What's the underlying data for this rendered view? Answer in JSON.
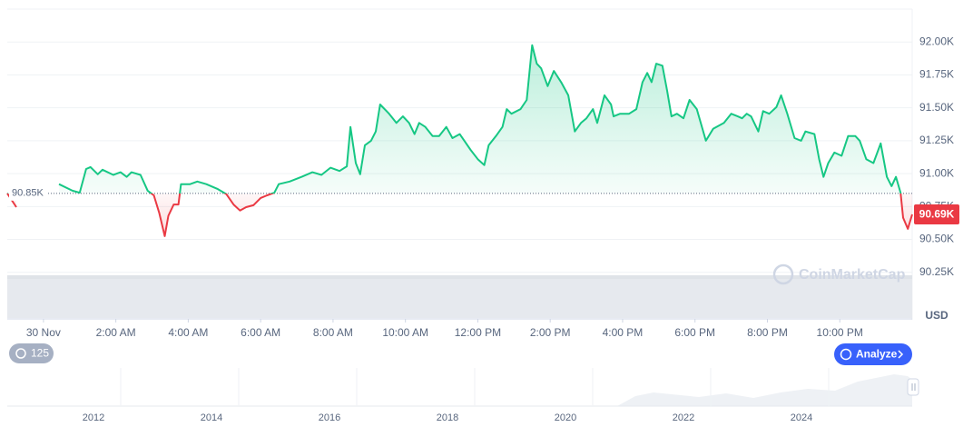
{
  "chart_data": {
    "type": "line",
    "x": [
      -1.0,
      -0.75,
      0.13,
      0.43,
      0.8,
      1.0,
      1.18,
      1.3,
      1.5,
      1.63,
      1.93,
      2.13,
      2.3,
      2.43,
      2.68,
      2.88,
      3.05,
      3.2,
      3.35,
      3.45,
      3.6,
      3.73,
      3.8,
      4.05,
      4.25,
      4.5,
      4.8,
      5.05,
      5.25,
      5.43,
      5.6,
      5.8,
      6.0,
      6.18,
      6.38,
      6.5,
      6.8,
      7.13,
      7.43,
      7.68,
      7.93,
      8.18,
      8.38,
      8.48,
      8.63,
      8.75,
      8.88,
      9.05,
      9.18,
      9.3,
      9.55,
      9.75,
      9.93,
      10.1,
      10.25,
      10.38,
      10.55,
      10.75,
      10.93,
      11.13,
      11.3,
      11.5,
      11.8,
      12.0,
      12.18,
      12.3,
      12.5,
      12.68,
      12.8,
      12.93,
      13.18,
      13.35,
      13.5,
      13.63,
      13.75,
      13.93,
      14.1,
      14.3,
      14.5,
      14.68,
      14.85,
      15.0,
      15.18,
      15.3,
      15.5,
      15.68,
      15.75,
      15.93,
      16.18,
      16.38,
      16.55,
      16.68,
      16.8,
      16.93,
      17.1,
      17.23,
      17.35,
      17.5,
      17.68,
      17.85,
      18.05,
      18.3,
      18.5,
      18.8,
      19.0,
      19.18,
      19.3,
      19.43,
      19.55,
      19.75,
      19.88,
      20.05,
      20.25,
      20.38,
      20.55,
      20.75,
      20.93,
      21.05,
      21.3,
      21.43,
      21.55,
      21.68,
      21.85,
      22.05,
      22.23,
      22.43,
      22.55,
      22.73,
      22.93,
      23.13,
      23.3,
      23.43,
      23.55,
      23.68,
      23.75,
      23.88,
      24.0
    ],
    "values": [
      90850,
      90745,
      null,
      90920,
      90870,
      90855,
      91035,
      91050,
      90995,
      91030,
      90990,
      91010,
      90975,
      91010,
      90990,
      90870,
      90835,
      90700,
      90525,
      90680,
      90765,
      90765,
      90920,
      90920,
      90940,
      90920,
      90885,
      90845,
      90765,
      90720,
      90745,
      90760,
      90815,
      90835,
      90855,
      90920,
      90940,
      90975,
      91010,
      90990,
      91045,
      91020,
      91055,
      91355,
      91080,
      90995,
      91215,
      91250,
      91320,
      91525,
      91455,
      91385,
      91435,
      91385,
      91300,
      91385,
      91355,
      91285,
      91285,
      91355,
      91270,
      91300,
      91180,
      91110,
      91065,
      91215,
      91285,
      91355,
      91490,
      91455,
      91490,
      91560,
      91975,
      91835,
      91800,
      91665,
      91780,
      91695,
      91595,
      91320,
      91385,
      91420,
      91490,
      91385,
      91595,
      91525,
      91435,
      91455,
      91455,
      91490,
      91695,
      91765,
      91695,
      91835,
      91820,
      91630,
      91435,
      91455,
      91420,
      91560,
      91490,
      91250,
      91340,
      91385,
      91455,
      91435,
      91420,
      91455,
      91435,
      91320,
      91475,
      91455,
      91505,
      91595,
      91455,
      91270,
      91250,
      91320,
      91300,
      91110,
      90975,
      91080,
      91160,
      91135,
      91285,
      91285,
      91250,
      91110,
      91080,
      91230,
      90975,
      90905,
      90975,
      90855,
      90665,
      90580,
      90690
    ],
    "color_up": "#16c784",
    "color_down": "#ea3943",
    "xlim": [
      -1,
      24
    ],
    "xticks": [
      {
        "value": 0,
        "label": "30 Nov"
      },
      {
        "value": 2,
        "label": "2:00 AM"
      },
      {
        "value": 4,
        "label": "4:00 AM"
      },
      {
        "value": 6,
        "label": "6:00 AM"
      },
      {
        "value": 8,
        "label": "8:00 AM"
      },
      {
        "value": 10,
        "label": "10:00 AM"
      },
      {
        "value": 12,
        "label": "12:00 PM"
      },
      {
        "value": 14,
        "label": "2:00 PM"
      },
      {
        "value": 16,
        "label": "4:00 PM"
      },
      {
        "value": 18,
        "label": "6:00 PM"
      },
      {
        "value": 20,
        "label": "8:00 PM"
      },
      {
        "value": 22,
        "label": "10:00 PM"
      }
    ],
    "ylim": [
      90200,
      92250
    ],
    "yticks": [
      {
        "value": 90250,
        "label": "90.25K"
      },
      {
        "value": 90500,
        "label": "90.50K"
      },
      {
        "value": 90750,
        "label": "90.75K"
      },
      {
        "value": 91000,
        "label": "91.00K"
      },
      {
        "value": 91250,
        "label": "91.25K"
      },
      {
        "value": 91500,
        "label": "91.50K"
      },
      {
        "value": 91750,
        "label": "91.75K"
      },
      {
        "value": 92000,
        "label": "92.00K"
      }
    ],
    "grid": true,
    "y_axis_label": "USD",
    "reference_line": {
      "value": 90850,
      "label": "90.85K"
    },
    "price_tag": {
      "value": 90690,
      "label": "90.69K"
    }
  },
  "watermark": "CoinMarketCap",
  "controls": {
    "interval_badge": "125",
    "analyze": "Analyze"
  },
  "navigator": {
    "labels": [
      "2012",
      "2014",
      "2016",
      "2018",
      "2020",
      "2022",
      "2024"
    ]
  }
}
